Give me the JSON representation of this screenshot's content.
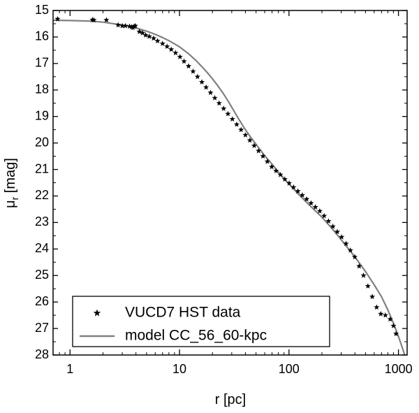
{
  "chart_data": {
    "type": "scatter",
    "xlabel": "r [pc]",
    "ylabel_main": "μ",
    "ylabel_sub": "r",
    "ylabel_rest": " [mag]",
    "x_scale": "log",
    "xlim": [
      0.7,
      1200
    ],
    "ylim": [
      28,
      15
    ],
    "y_inverted": true,
    "x_ticks": [
      1,
      10,
      100,
      1000
    ],
    "x_tick_labels": [
      "1",
      "10",
      "100",
      "1000"
    ],
    "y_ticks": [
      15,
      16,
      17,
      18,
      19,
      20,
      21,
      22,
      23,
      24,
      25,
      26,
      27,
      28
    ],
    "y_tick_labels": [
      "15",
      "16",
      "17",
      "18",
      "19",
      "20",
      "21",
      "22",
      "23",
      "24",
      "25",
      "26",
      "27",
      "28"
    ],
    "grid": false,
    "legend_position": "bottom-left",
    "colors": {
      "data": "#000000",
      "model": "#808080",
      "axis": "#000000"
    },
    "series": [
      {
        "name": "VUCD7 HST data",
        "kind": "scatter",
        "marker": "star",
        "points": [
          [
            0.77,
            15.32
          ],
          [
            1.6,
            15.35
          ],
          [
            1.65,
            15.36
          ],
          [
            2.15,
            15.36
          ],
          [
            2.75,
            15.55
          ],
          [
            3.0,
            15.58
          ],
          [
            3.2,
            15.58
          ],
          [
            3.5,
            15.6
          ],
          [
            3.65,
            15.62
          ],
          [
            3.75,
            15.65
          ],
          [
            3.85,
            15.6
          ],
          [
            3.95,
            15.58
          ],
          [
            4.3,
            15.8
          ],
          [
            4.6,
            15.85
          ],
          [
            4.9,
            15.93
          ],
          [
            5.3,
            15.98
          ],
          [
            5.8,
            16.05
          ],
          [
            6.3,
            16.15
          ],
          [
            7.0,
            16.25
          ],
          [
            7.7,
            16.36
          ],
          [
            8.4,
            16.47
          ],
          [
            9.2,
            16.6
          ],
          [
            10.1,
            16.75
          ],
          [
            11.0,
            16.92
          ],
          [
            12.1,
            17.1
          ],
          [
            13.3,
            17.3
          ],
          [
            14.6,
            17.5
          ],
          [
            16.0,
            17.7
          ],
          [
            17.5,
            17.9
          ],
          [
            19.2,
            18.1
          ],
          [
            21.0,
            18.3
          ],
          [
            23.0,
            18.5
          ],
          [
            25.3,
            18.7
          ],
          [
            27.7,
            18.9
          ],
          [
            30.4,
            19.1
          ],
          [
            33.3,
            19.3
          ],
          [
            36.5,
            19.5
          ],
          [
            40.0,
            19.7
          ],
          [
            43.9,
            19.9
          ],
          [
            48.1,
            20.1
          ],
          [
            52.7,
            20.3
          ],
          [
            57.8,
            20.5
          ],
          [
            63.4,
            20.7
          ],
          [
            69.5,
            20.9
          ],
          [
            76.2,
            21.05
          ],
          [
            83.5,
            21.2
          ],
          [
            91.6,
            21.37
          ],
          [
            100.4,
            21.52
          ],
          [
            110.0,
            21.67
          ],
          [
            120.6,
            21.82
          ],
          [
            132.3,
            21.97
          ],
          [
            145.0,
            22.12
          ],
          [
            159.0,
            22.27
          ],
          [
            174.3,
            22.42
          ],
          [
            191.1,
            22.57
          ],
          [
            209.5,
            22.75
          ],
          [
            229.7,
            22.95
          ],
          [
            251.8,
            23.15
          ],
          [
            276.1,
            23.35
          ],
          [
            302.7,
            23.55
          ],
          [
            331.9,
            23.8
          ],
          [
            363.9,
            24.05
          ],
          [
            398.9,
            24.3
          ],
          [
            437.4,
            24.65
          ],
          [
            479.5,
            25.0
          ],
          [
            525.7,
            25.4
          ],
          [
            576.4,
            25.8
          ],
          [
            632.0,
            26.2
          ],
          [
            690.0,
            26.45
          ],
          [
            760.0,
            26.5
          ],
          [
            840.0,
            26.65
          ],
          [
            900.0,
            26.9
          ],
          [
            950.0,
            27.2
          ]
        ]
      },
      {
        "name": "model CC_56_60-kpc",
        "kind": "line",
        "points": [
          [
            0.7,
            15.37
          ],
          [
            1.0,
            15.38
          ],
          [
            1.5,
            15.4
          ],
          [
            2.0,
            15.44
          ],
          [
            2.5,
            15.5
          ],
          [
            3.0,
            15.55
          ],
          [
            3.5,
            15.6
          ],
          [
            4.0,
            15.66
          ],
          [
            5.0,
            15.78
          ],
          [
            6.0,
            15.9
          ],
          [
            7.0,
            16.02
          ],
          [
            8.0,
            16.14
          ],
          [
            9.0,
            16.26
          ],
          [
            10.0,
            16.37
          ],
          [
            12.0,
            16.62
          ],
          [
            14.0,
            16.87
          ],
          [
            16.0,
            17.12
          ],
          [
            18.0,
            17.35
          ],
          [
            20.0,
            17.58
          ],
          [
            22.0,
            17.8
          ],
          [
            25.0,
            18.12
          ],
          [
            28.0,
            18.44
          ],
          [
            30.0,
            18.65
          ],
          [
            35.0,
            19.12
          ],
          [
            40.0,
            19.5
          ],
          [
            45.0,
            19.8
          ],
          [
            50.0,
            20.05
          ],
          [
            60.0,
            20.48
          ],
          [
            70.0,
            20.8
          ],
          [
            80.0,
            21.1
          ],
          [
            100.0,
            21.55
          ],
          [
            120.0,
            21.9
          ],
          [
            150.0,
            22.3
          ],
          [
            200.0,
            22.8
          ],
          [
            250.0,
            23.25
          ],
          [
            300.0,
            23.65
          ],
          [
            400.0,
            24.3
          ],
          [
            500.0,
            24.85
          ],
          [
            600.0,
            25.35
          ],
          [
            700.0,
            25.8
          ],
          [
            800.0,
            26.3
          ],
          [
            900.0,
            26.8
          ],
          [
            1000.0,
            27.3
          ],
          [
            1100.0,
            27.8
          ],
          [
            1150.0,
            28.05
          ]
        ]
      }
    ]
  }
}
